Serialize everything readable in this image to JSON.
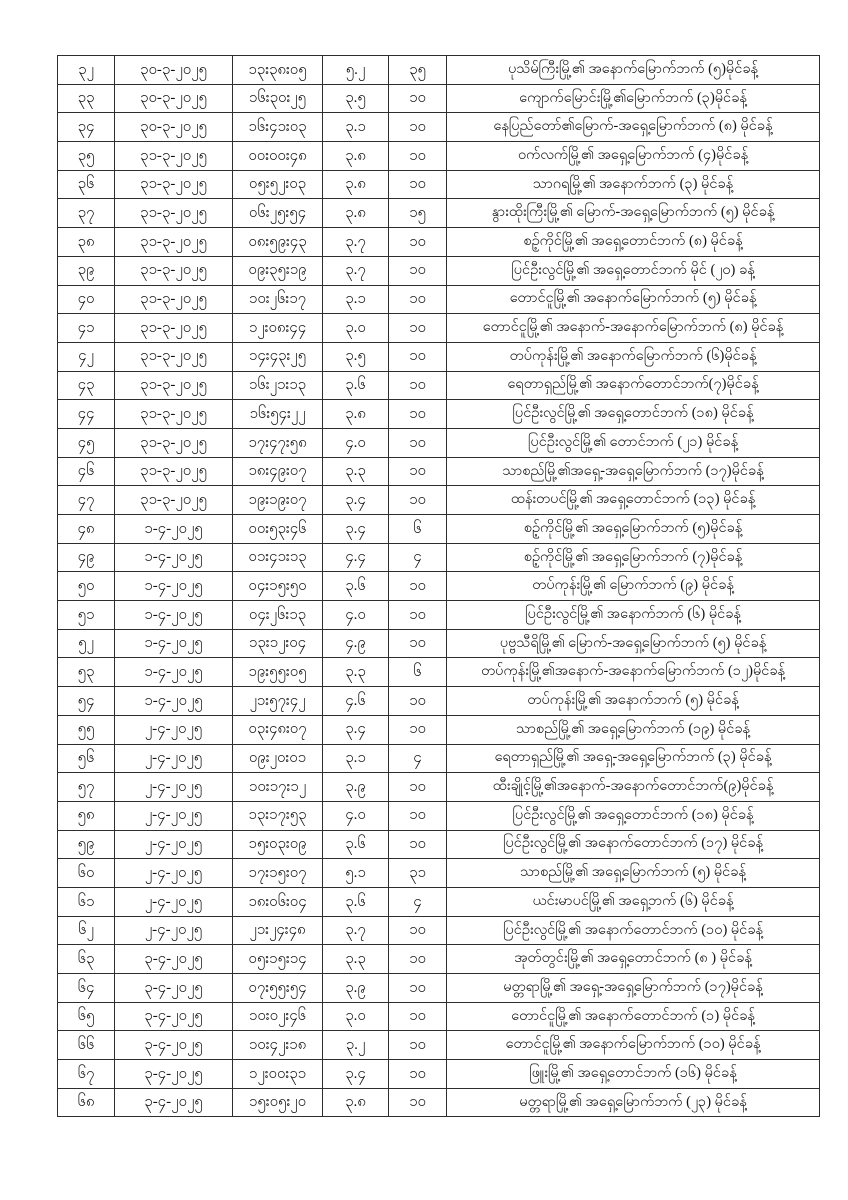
{
  "page": {
    "background_color": "#ffffff",
    "border_color": "#2e2e2e",
    "text_color": "#111111"
  },
  "table": {
    "column_keys": [
      "no",
      "date",
      "time",
      "magnitude",
      "depth",
      "location"
    ],
    "rows": [
      {
        "no": "၃၂",
        "date": "၃၀-၃-၂၀၂၅",
        "time": "၁၃း၃၈း၀၅",
        "magnitude": "၅.၂",
        "depth": "၃၅",
        "location": "ပုသိမ်ကြီးမြို့၏ အနောက်မြောက်ဘက် (၅)မိုင်ခန့်"
      },
      {
        "no": "၃၃",
        "date": "၃၀-၃-၂၀၂၅",
        "time": "၁၆း၃၀း၂၅",
        "magnitude": "၃.၅",
        "depth": "၁၀",
        "location": "ကျောက်မြောင်းမြို့၏မြောက်ဘက် (၃)မိုင်ခန့်"
      },
      {
        "no": "၃၄",
        "date": "၃၀-၃-၂၀၂၅",
        "time": "၁၆း၄၁း၀၃",
        "magnitude": "၃.၁",
        "depth": "၁၀",
        "location": "နေပြည်တော်၏မြောက်-အရှေ့မြောက်ဘက် (၈) မိုင်ခန့်"
      },
      {
        "no": "၃၅",
        "date": "၃၁-၃-၂၀၂၅",
        "time": "၀၀း၀၀း၄၈",
        "magnitude": "၃.၈",
        "depth": "၁၀",
        "location": "ဝက်လက်မြို့၏ အရှေ့မြောက်ဘက် (၄)မိုင်ခန့်"
      },
      {
        "no": "၃၆",
        "date": "၃၁-၃-၂၀၂၅",
        "time": "၀၅း၅၂း၀၃",
        "magnitude": "၃.၈",
        "depth": "၁၀",
        "location": "သာဂရမြို့၏ အနောက်ဘက် (၃) မိုင်ခန့်"
      },
      {
        "no": "၃၇",
        "date": "၃၁-၃-၂၀၂၅",
        "time": "၀၆း၂၅း၅၄",
        "magnitude": "၃.၈",
        "depth": "၁၅",
        "location": "နွားထိုးကြီးမြို့၏ မြောက်-အရှေ့မြောက်ဘက် (၅) မိုင်ခန့်"
      },
      {
        "no": "၃၈",
        "date": "၃၁-၃-၂၀၂၅",
        "time": "၀၈း၅၉း၄၃",
        "magnitude": "၃.၇",
        "depth": "၁၀",
        "location": "စဉ့်ကိုင်မြို့၏ အရှေ့တောင်ဘက် (၈) မိုင်ခန့်"
      },
      {
        "no": "၃၉",
        "date": "၃၁-၃-၂၀၂၅",
        "time": "၀၉း၃၅း၁၉",
        "magnitude": "၃.၇",
        "depth": "၁၀",
        "location": "ပြင်ဦးလွင်မြို့၏ အရှေ့တောင်ဘက် မိုင် (၂၀) ခန့်"
      },
      {
        "no": "၄၀",
        "date": "၃၁-၃-၂၀၂၅",
        "time": "၁၀း၂၆း၁၇",
        "magnitude": "၃.၁",
        "depth": "၁၀",
        "location": "တောင်ငူမြို့၏ အနောက်မြောက်ဘက် (၅) မိုင်ခန့်"
      },
      {
        "no": "၄၁",
        "date": "၃၁-၃-၂၀၂၅",
        "time": "၁၂း၀၈း၄၄",
        "magnitude": "၃.၀",
        "depth": "၁၀",
        "location": "တောင်ငူမြို့၏ အနောက်-အနောက်မြောက်ဘက် (၈) မိုင်ခန့်"
      },
      {
        "no": "၄၂",
        "date": "၃၁-၃-၂၀၂၅",
        "time": "၁၄း၄၃း၂၅",
        "magnitude": "၃.၅",
        "depth": "၁၀",
        "location": "တပ်ကုန်းမြို့၏ အနောက်မြောက်ဘက် (၆)မိုင်ခန့်"
      },
      {
        "no": "၄၃",
        "date": "၃၁-၃-၂၀၂၅",
        "time": "၁၆း၂၁း၁၃",
        "magnitude": "၃.၆",
        "depth": "၁၀",
        "location": "ရေတာရှည်မြို့၏ အနောက်တောင်ဘက်(၇)မိုင်ခန့်"
      },
      {
        "no": "၄၄",
        "date": "၃၁-၃-၂၀၂၅",
        "time": "၁၆း၅၄း၂၂",
        "magnitude": "၃.၈",
        "depth": "၁၀",
        "location": "ပြင်ဦးလွင်မြို့၏ အရှေ့တောင်ဘက် (၁၈) မိုင်ခန့်"
      },
      {
        "no": "၄၅",
        "date": "၃၁-၃-၂၀၂၅",
        "time": "၁၇း၄၇း၅၈",
        "magnitude": "၄.၀",
        "depth": "၁၀",
        "location": "ပြင်ဦးလွင်မြို့၏ တောင်ဘက် (၂၁) မိုင်ခန့်"
      },
      {
        "no": "၄၆",
        "date": "၃၁-၃-၂၀၂၅",
        "time": "၁၈း၄၉း၀၇",
        "magnitude": "၃.၃",
        "depth": "၁၀",
        "location": "သာစည်မြို့၏အရှေ့-အရှေ့မြောက်ဘက် (၁၇)မိုင်ခန့်"
      },
      {
        "no": "၄၇",
        "date": "၃၁-၃-၂၀၂၅",
        "time": "၁၉း၁၉း၀၇",
        "magnitude": "၃.၄",
        "depth": "၁၀",
        "location": "ထန်းတပင်မြို့၏ အရှေ့တောင်ဘက် (၁၃) မိုင်ခန့်"
      },
      {
        "no": "၄၈",
        "date": "၁-၄-၂၀၂၅",
        "time": "၀၀း၅၃း၄၆",
        "magnitude": "၃.၄",
        "depth": "၆",
        "location": "စဉ့်ကိုင်မြို့၏ အရှေ့မြောက်ဘက် (၅)မိုင်ခန့်"
      },
      {
        "no": "၄၉",
        "date": "၁-၄-၂၀၂၅",
        "time": "၀၁း၄၁း၁၃",
        "magnitude": "၄.၄",
        "depth": "၄",
        "location": "စဉ့်ကိုင်မြို့၏ အရှေ့မြောက်ဘက် (၇)မိုင်ခန့်"
      },
      {
        "no": "၅၀",
        "date": "၁-၄-၂၀၂၅",
        "time": "၀၄း၁၅း၅၀",
        "magnitude": "၃.၆",
        "depth": "၁၀",
        "location": "တပ်ကုန်းမြို့၏ မြောက်ဘက် (၉) မိုင်ခန့်"
      },
      {
        "no": "၅၁",
        "date": "၁-၄-၂၀၂၅",
        "time": "၀၄း၂၆း၁၃",
        "magnitude": "၄.၀",
        "depth": "၁၀",
        "location": "ပြင်ဦးလွင်မြို့၏ အနောက်ဘက် (၆) မိုင်ခန့်"
      },
      {
        "no": "၅၂",
        "date": "၁-၄-၂၀၂၅",
        "time": "၁၃း၁၂း၀၄",
        "magnitude": "၄.၉",
        "depth": "၁၀",
        "location": "ပုဗ္ဗသီရိမြို့၏ မြောက်-အရှေ့မြောက်ဘက် (၅) မိုင်ခန့်"
      },
      {
        "no": "၅၃",
        "date": "၁-၄-၂၀၂၅",
        "time": "၁၉း၅၅း၀၅",
        "magnitude": "၃.၃",
        "depth": "၆",
        "location": "တပ်ကုန်းမြို့၏အနောက်-အနောက်မြောက်ဘက် (၁၂)မိုင်ခန့်"
      },
      {
        "no": "၅၄",
        "date": "၁-၄-၂၀၂၅",
        "time": "၂၁း၅၇း၄၂",
        "magnitude": "၄.၆",
        "depth": "၁၀",
        "location": "တပ်ကုန်းမြို့၏ အနောက်ဘက် (၅) မိုင်ခန့်"
      },
      {
        "no": "၅၅",
        "date": "၂-၄-၂၀၂၅",
        "time": "၀၃း၄၈း၀၇",
        "magnitude": "၃.၄",
        "depth": "၁၀",
        "location": "သာစည်မြို့၏ အရှေ့မြောက်ဘက် (၁၉) မိုင်ခန့်"
      },
      {
        "no": "၅၆",
        "date": "၂-၄-၂၀၂၅",
        "time": "၀၉း၂၀း၀၁",
        "magnitude": "၃.၁",
        "depth": "၄",
        "location": "ရေတာရှည်မြို့၏ အရှေ့-အရှေ့မြောက်ဘက် (၃) မိုင်ခန့်"
      },
      {
        "no": "၅၇",
        "date": "၂-၄-၂၀၂၅",
        "time": "၁၀း၁၇း၁၂",
        "magnitude": "၃.၉",
        "depth": "၁၀",
        "location": "ထီးချိုင့်မြို့၏အနောက်-အနောက်တောင်ဘက်(၉)မိုင်ခန့်"
      },
      {
        "no": "၅၈",
        "date": "၂-၄-၂၀၂၅",
        "time": "၁၃း၁၇း၅၃",
        "magnitude": "၄.၀",
        "depth": "၁၀",
        "location": "ပြင်ဦးလွင်မြို့၏ အရှေ့တောင်ဘက် (၁၈) မိုင်ခန့်"
      },
      {
        "no": "၅၉",
        "date": "၂-၄-၂၀၂၅",
        "time": "၁၅း၀၃း၀၉",
        "magnitude": "၃.၆",
        "depth": "၁၀",
        "location": "ပြင်ဦးလွင်မြို့၏ အနောက်တောင်ဘက် (၁၇) မိုင်ခန့်"
      },
      {
        "no": "၆၀",
        "date": "၂-၄-၂၀၂၅",
        "time": "၁၇း၁၅း၀၇",
        "magnitude": "၅.၁",
        "depth": "၃၁",
        "location": "သာစည်မြို့၏ အရှေ့မြောက်ဘက် (၅) မိုင်ခန့်"
      },
      {
        "no": "၆၁",
        "date": "၂-၄-၂၀၂၅",
        "time": "၁၈း၀၆း၀၄",
        "magnitude": "၃.၆",
        "depth": "၄",
        "location": "ယင်းမာပင်မြို့၏ အရှေ့ဘက် (၆) မိုင်ခန့်"
      },
      {
        "no": "၆၂",
        "date": "၂-၄-၂၀၂၅",
        "time": "၂၁း၂၄း၄၈",
        "magnitude": "၃.၇",
        "depth": "၁၀",
        "location": "ပြင်ဦးလွင်မြို့၏ အနောက်တောင်ဘက် (၁၀) မိုင်ခန့်"
      },
      {
        "no": "၆၃",
        "date": "၃-၄-၂၀၂၅",
        "time": "၀၅း၁၅း၁၄",
        "magnitude": "၃.၃",
        "depth": "၁၀",
        "location": "အုတ်တွင်းမြို့၏ အရှေ့တောင်ဘက် (၈ ) မိုင်ခန့်"
      },
      {
        "no": "၆၄",
        "date": "၃-၄-၂၀၂၅",
        "time": "၀၇း၅၅း၅၄",
        "magnitude": "၃.၉",
        "depth": "၁၀",
        "location": "မတ္တရာမြို့၏ အရှေ့-အရှေ့မြောက်ဘက် (၁၇)မိုင်ခန့်"
      },
      {
        "no": "၆၅",
        "date": "၃-၄-၂၀၂၅",
        "time": "၁၀း၀၂း၄၆",
        "magnitude": "၃.၀",
        "depth": "၁၀",
        "location": "တောင်ငူမြို့၏ အနောက်တောင်ဘက် (၁) မိုင်ခန့်"
      },
      {
        "no": "၆၆",
        "date": "၃-၄-၂၀၂၅",
        "time": "၁၀း၄၂း၁၈",
        "magnitude": "၃.၂",
        "depth": "၁၀",
        "location": "တောင်ငူမြို့၏ အနောက်မြောက်ဘက် (၁၀) မိုင်ခန့်"
      },
      {
        "no": "၆၇",
        "date": "၃-၄-၂၀၂၅",
        "time": "၁၂း၀၀း၃၁",
        "magnitude": "၃.၄",
        "depth": "၁၀",
        "location": "ဖြူးမြို့၏ အရှေ့တောင်ဘက် (၁၆) မိုင်ခန့်"
      },
      {
        "no": "၆၈",
        "date": "၃-၄-၂၀၂၅",
        "time": "၁၅း၀၅း၂၀",
        "magnitude": "၃.၈",
        "depth": "၁၀",
        "location": "မတ္တရာမြို့၏ အရှေ့မြောက်ဘက် (၂၃) မိုင်ခန့်"
      }
    ]
  }
}
